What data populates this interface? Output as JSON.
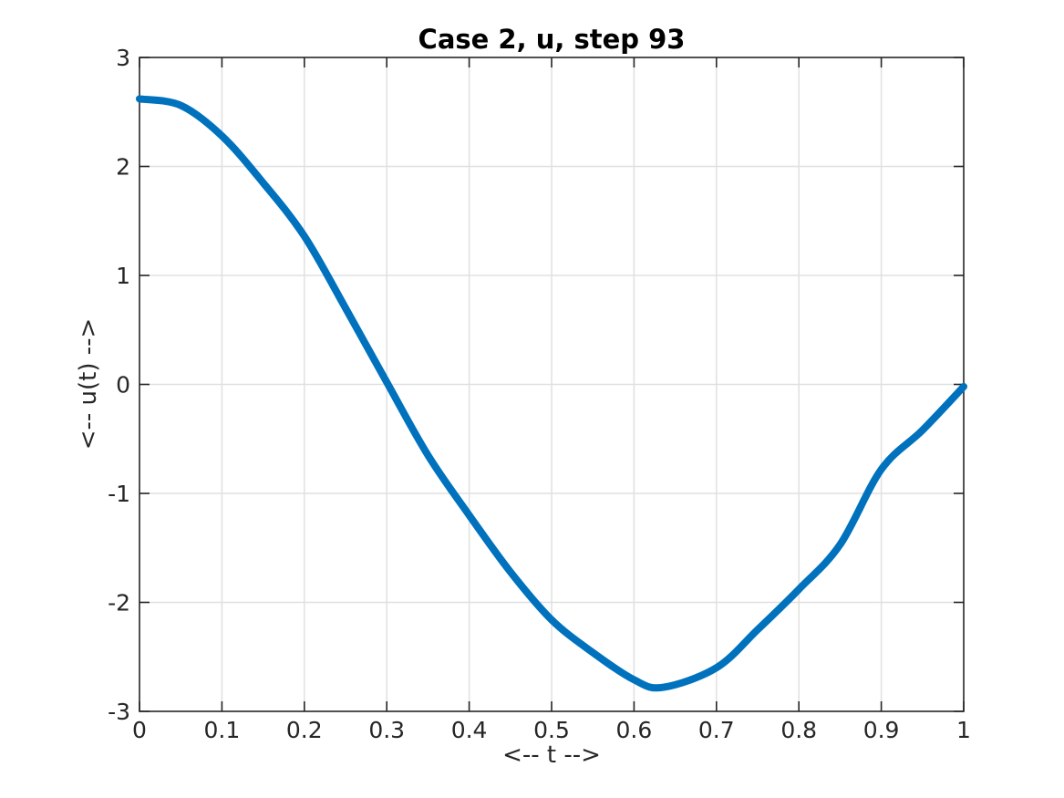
{
  "figure": {
    "background": "#ffffff"
  },
  "chart_data": {
    "type": "line",
    "title": "Case 2, u, step 93",
    "xlabel": "<-- t -->",
    "ylabel": "<-- u(t) -->",
    "xlim": [
      0,
      1
    ],
    "ylim": [
      -3,
      3
    ],
    "x_tick_values": [
      0,
      0.1,
      0.2,
      0.3,
      0.4,
      0.5,
      0.6,
      0.7,
      0.8,
      0.9,
      1
    ],
    "x_tick_labels": [
      "0",
      "0.1",
      "0.2",
      "0.3",
      "0.4",
      "0.5",
      "0.6",
      "0.7",
      "0.8",
      "0.9",
      "1"
    ],
    "y_tick_values": [
      -3,
      -2,
      -1,
      0,
      1,
      2,
      3
    ],
    "y_tick_labels": [
      "-3",
      "-2",
      "-1",
      "0",
      "1",
      "2",
      "3"
    ],
    "grid": true,
    "legend": false,
    "line_color": "#0072BD",
    "line_width": 8,
    "axis_color": "#262626",
    "grid_color": "#e0e0e0",
    "tick_label_color": "#262626",
    "series": [
      {
        "name": "u",
        "x": [
          0.0,
          0.05,
          0.1,
          0.15,
          0.2,
          0.25,
          0.3,
          0.35,
          0.4,
          0.45,
          0.5,
          0.55,
          0.6,
          0.635,
          0.7,
          0.75,
          0.8,
          0.85,
          0.9,
          0.95,
          1.0
        ],
        "y": [
          2.62,
          2.56,
          2.28,
          1.85,
          1.36,
          0.7,
          0.02,
          -0.65,
          -1.2,
          -1.72,
          -2.16,
          -2.46,
          -2.71,
          -2.78,
          -2.6,
          -2.25,
          -1.88,
          -1.47,
          -0.78,
          -0.42,
          -0.02
        ]
      }
    ]
  }
}
